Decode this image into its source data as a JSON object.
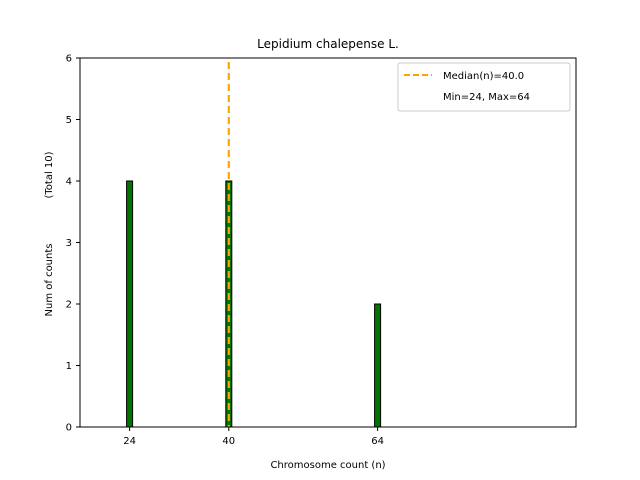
{
  "chart_data": {
    "type": "bar",
    "title": "Lepidium chalepense L.",
    "xlabel": "Chromosome count (n)",
    "ylabel": "Num of counts",
    "ylabel_total": "(Total 10)",
    "x": [
      24,
      40,
      64
    ],
    "xticks": [
      "24",
      "40",
      "64"
    ],
    "values": [
      4,
      4,
      2
    ],
    "xlim": [
      16,
      96
    ],
    "ylim": [
      0,
      6
    ],
    "yticks": [
      "0",
      "1",
      "2",
      "3",
      "4",
      "5",
      "6"
    ],
    "median": 40.0,
    "median_label": "Median(n)=40.0",
    "minmax_label": "Min=24, Max=64",
    "legend_position": "upper right",
    "colors": {
      "bar_fill": "#007500",
      "bar_edge": "#000000",
      "median_line": "#FFA500"
    }
  }
}
